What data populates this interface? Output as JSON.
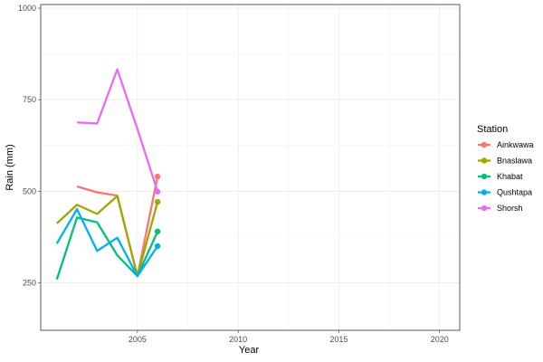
{
  "chart_data": {
    "type": "line",
    "title": "",
    "xlabel": "Year",
    "ylabel": "Rain (mm)",
    "xlim": [
      2000.2,
      2021
    ],
    "ylim": [
      120,
      1010
    ],
    "x_ticks": [
      2005,
      2010,
      2015,
      2020
    ],
    "y_ticks": [
      250,
      500,
      750,
      1000
    ],
    "x_tick_labels": [
      "2005",
      "2010",
      "2015",
      "2020"
    ],
    "y_tick_labels": [
      "250",
      "500",
      "750",
      "1000"
    ],
    "grid": true,
    "legend": {
      "title": "Station",
      "position": "right"
    },
    "series": [
      {
        "name": "Ainkwawa",
        "color": "#F8766D",
        "x": [
          2002,
          2003,
          2004,
          2005,
          2006
        ],
        "y": [
          513,
          497,
          488,
          268,
          540
        ],
        "final_point": [
          2006,
          540
        ]
      },
      {
        "name": "Bnaslawa",
        "color": "#A3A500",
        "x": [
          2001,
          2002,
          2003,
          2004,
          2005,
          2006
        ],
        "y": [
          412,
          463,
          438,
          487,
          268,
          471
        ],
        "final_point": [
          2006,
          471
        ]
      },
      {
        "name": "Khabat",
        "color": "#00BF7D",
        "x": [
          2001,
          2002,
          2003,
          2004,
          2005,
          2006
        ],
        "y": [
          259,
          428,
          415,
          325,
          268,
          390
        ],
        "final_point": [
          2006,
          390
        ]
      },
      {
        "name": "Qushtapa",
        "color": "#00B0F6",
        "x": [
          2001,
          2002,
          2003,
          2004,
          2005,
          2006
        ],
        "y": [
          357,
          451,
          337,
          373,
          268,
          350
        ],
        "final_point": [
          2006,
          350
        ]
      },
      {
        "name": "Shorsh",
        "color": "#E76BF3",
        "x": [
          2002,
          2003,
          2004,
          2005,
          2006
        ],
        "y": [
          688,
          685,
          833,
          670,
          499
        ],
        "final_point": [
          2006,
          499
        ]
      }
    ]
  }
}
